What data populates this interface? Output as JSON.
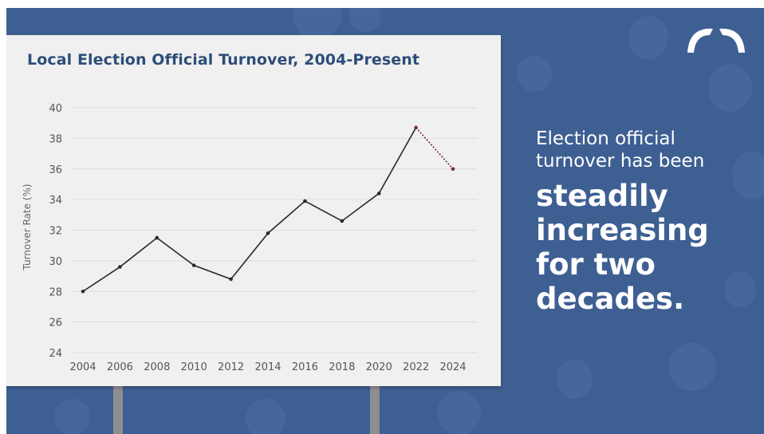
{
  "message": {
    "line1": "Election official",
    "line2": "turnover has been",
    "line3": "steadily",
    "line4": "increasing",
    "line5": "for two",
    "line6": "decades."
  },
  "colors": {
    "background": "#3e5f92",
    "billboard": "#f0f0f0",
    "title": "#2d4d79",
    "line": "#2a2a2a",
    "projection": "#7a2a3a"
  },
  "logo_icon": "arch-logo-icon",
  "chart_data": {
    "type": "line",
    "title": "Local Election Official Turnover, 2004-Present",
    "xlabel": "",
    "ylabel": "Turnover Rate (%)",
    "ylim": [
      24,
      40
    ],
    "yticks": [
      "24",
      "26",
      "28",
      "30",
      "32",
      "34",
      "36",
      "38",
      "40"
    ],
    "categories": [
      "2004",
      "2006",
      "2008",
      "2010",
      "2012",
      "2014",
      "2016",
      "2018",
      "2020",
      "2022",
      "2024"
    ],
    "values": [
      28.0,
      29.6,
      31.5,
      29.7,
      28.8,
      31.8,
      33.9,
      32.6,
      34.4,
      38.7,
      36.0
    ],
    "projection": {
      "from_index": 9,
      "to_index": 10,
      "style": "dotted"
    },
    "grid": true
  }
}
